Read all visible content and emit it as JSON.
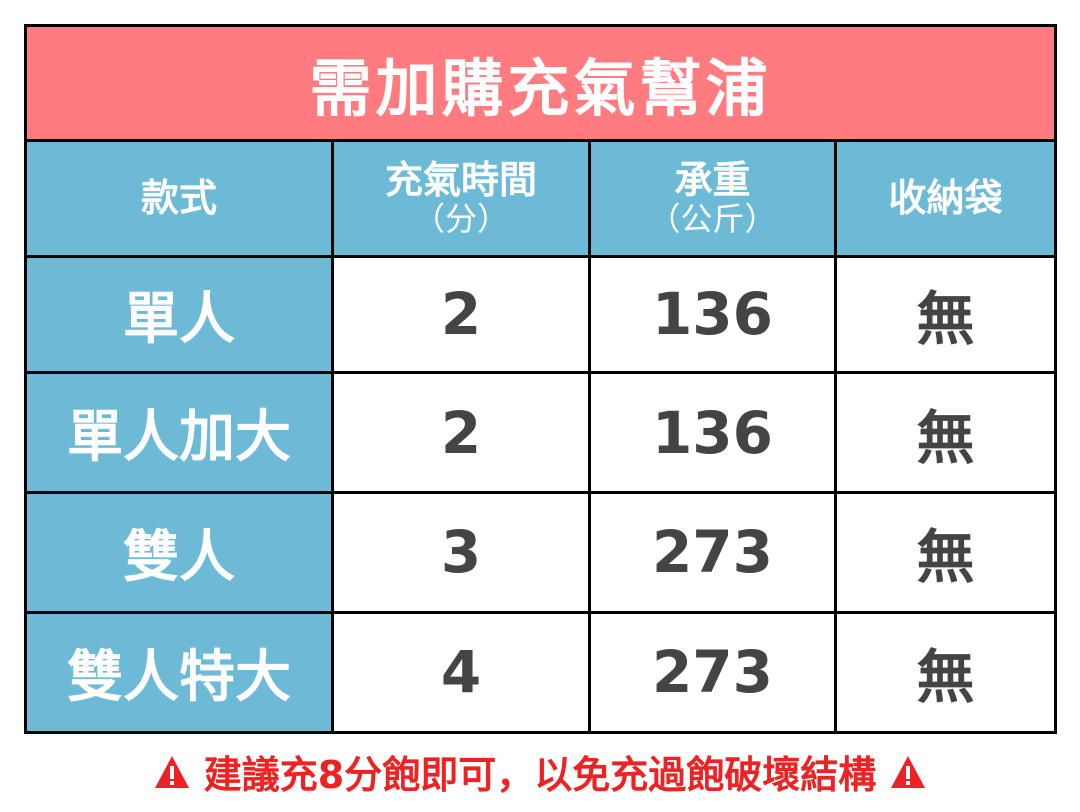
{
  "title": "需加購充氣幫浦",
  "headers": [
    {
      "main": "款式",
      "sub": ""
    },
    {
      "main": "充氣時間",
      "sub": "（分）"
    },
    {
      "main": "承重",
      "sub": "（公斤）"
    },
    {
      "main": "收納袋",
      "sub": ""
    }
  ],
  "rows": [
    {
      "model": "單人",
      "time": "2",
      "weight": "136",
      "bag": "無"
    },
    {
      "model": "單人加大",
      "time": "2",
      "weight": "136",
      "bag": "無"
    },
    {
      "model": "雙人",
      "time": "3",
      "weight": "273",
      "bag": "無"
    },
    {
      "model": "雙人特大",
      "time": "4",
      "weight": "273",
      "bag": "無"
    }
  ],
  "footer": {
    "text": "建議充8分飽即可，以免充過飽破壞結構",
    "icon": "warning-triangle-icon"
  },
  "colors": {
    "title_bg": "#FF7B80",
    "header_bg": "#6DBAD6",
    "warning": "#EE2222",
    "value_text": "#444444"
  }
}
